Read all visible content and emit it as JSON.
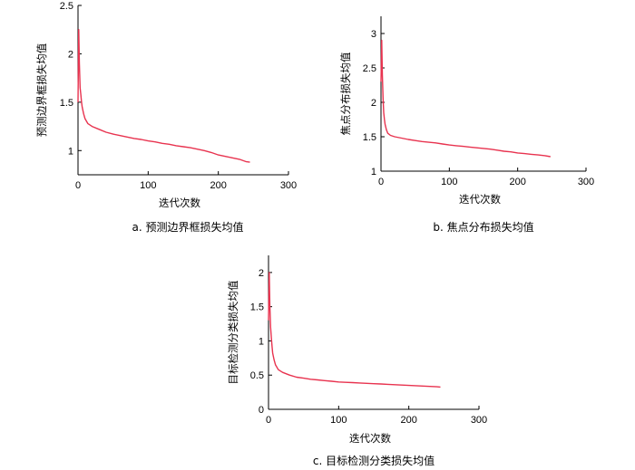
{
  "chart_data": [
    {
      "type": "line",
      "caption": "a.  预测边界框损失均值",
      "xlabel": "迭代次数",
      "ylabel": "预测边界框损失均值",
      "xlim": [
        0,
        300
      ],
      "ylim": [
        0.75,
        2.5
      ],
      "xticks": [
        0,
        100,
        200,
        300
      ],
      "yticks": [
        1.0,
        1.5,
        2.0,
        2.5
      ],
      "grid": false,
      "color": "#e8334f",
      "series": [
        {
          "x": [
            0,
            1,
            2,
            3,
            4,
            5,
            6,
            8,
            10,
            14,
            20,
            30,
            40,
            50,
            60,
            70,
            80,
            90,
            100,
            110,
            120,
            130,
            140,
            150,
            160,
            170,
            180,
            190,
            200,
            210,
            220,
            230,
            240,
            245
          ],
          "values": [
            1.5,
            2.25,
            1.9,
            1.65,
            1.58,
            1.5,
            1.45,
            1.38,
            1.33,
            1.28,
            1.25,
            1.22,
            1.19,
            1.17,
            1.155,
            1.14,
            1.125,
            1.115,
            1.1,
            1.09,
            1.075,
            1.065,
            1.05,
            1.04,
            1.03,
            1.015,
            1.0,
            0.98,
            0.955,
            0.94,
            0.925,
            0.91,
            0.885,
            0.88
          ]
        }
      ]
    },
    {
      "type": "line",
      "caption": "b.  焦点分布损失均值",
      "xlabel": "迭代次数",
      "ylabel": "焦点分布损失均值",
      "xlim": [
        0,
        300
      ],
      "ylim": [
        1.0,
        3.25
      ],
      "xticks": [
        0,
        100,
        200,
        300
      ],
      "yticks": [
        1.0,
        1.5,
        2.0,
        2.5,
        3.0
      ],
      "grid": false,
      "color": "#e8334f",
      "series": [
        {
          "x": [
            0,
            1,
            2,
            3,
            4,
            5,
            6,
            8,
            10,
            14,
            20,
            30,
            40,
            50,
            60,
            70,
            80,
            90,
            100,
            110,
            120,
            130,
            140,
            150,
            160,
            170,
            180,
            190,
            200,
            210,
            220,
            230,
            240,
            248
          ],
          "values": [
            2.3,
            2.9,
            2.4,
            2.05,
            1.85,
            1.75,
            1.68,
            1.6,
            1.55,
            1.52,
            1.5,
            1.48,
            1.46,
            1.445,
            1.43,
            1.42,
            1.41,
            1.395,
            1.38,
            1.37,
            1.36,
            1.35,
            1.34,
            1.33,
            1.32,
            1.305,
            1.29,
            1.28,
            1.265,
            1.255,
            1.245,
            1.235,
            1.225,
            1.21
          ]
        }
      ]
    },
    {
      "type": "line",
      "caption": "c.  目标检测分类损失均值",
      "xlabel": "迭代次数",
      "ylabel": "目标检测分类损失均值",
      "xlim": [
        0,
        300
      ],
      "ylim": [
        0,
        2.25
      ],
      "xticks": [
        0,
        100,
        200,
        300
      ],
      "yticks": [
        0,
        0.5,
        1.0,
        1.5,
        2.0
      ],
      "grid": false,
      "color": "#e8334f",
      "series": [
        {
          "x": [
            0,
            1,
            2,
            3,
            4,
            5,
            6,
            8,
            10,
            14,
            20,
            30,
            40,
            50,
            60,
            70,
            80,
            90,
            100,
            110,
            120,
            130,
            140,
            150,
            160,
            170,
            180,
            190,
            200,
            210,
            220,
            230,
            240,
            245
          ],
          "values": [
            1.3,
            2.0,
            1.5,
            1.2,
            1.05,
            0.92,
            0.82,
            0.72,
            0.65,
            0.58,
            0.54,
            0.5,
            0.47,
            0.455,
            0.44,
            0.43,
            0.42,
            0.41,
            0.4,
            0.395,
            0.39,
            0.385,
            0.38,
            0.375,
            0.37,
            0.365,
            0.36,
            0.355,
            0.35,
            0.345,
            0.34,
            0.335,
            0.33,
            0.325
          ]
        }
      ]
    }
  ]
}
